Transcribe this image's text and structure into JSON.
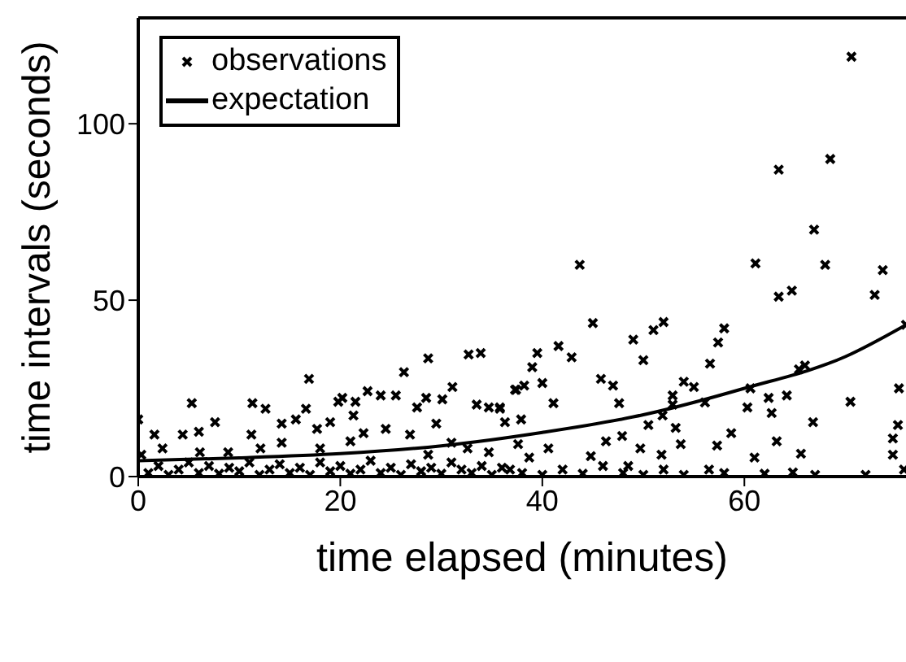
{
  "chart_data": {
    "type": "scatter",
    "xlabel": "time elapsed (minutes)",
    "ylabel": "time intervals (seconds)",
    "xlim": [
      0,
      76
    ],
    "ylim": [
      0,
      130
    ],
    "xticks": [
      0,
      20,
      40,
      60
    ],
    "yticks": [
      0,
      50,
      100
    ],
    "legend": "top left",
    "series": [
      {
        "name": "observations",
        "marker": "cross",
        "color": "#000000",
        "x": [
          70.6,
          68.5,
          63.4,
          43.7,
          61.1,
          68,
          73.7,
          63.4,
          64.7,
          72.9,
          66.9,
          45,
          49,
          51,
          52,
          57.4,
          58,
          76,
          39.5,
          41.6,
          42.9,
          39,
          50,
          56.6,
          66,
          65.4,
          37.3,
          38.2,
          40,
          41.1,
          45.8,
          47,
          54,
          55,
          52.9,
          56.1,
          60.6,
          60.3,
          62.4,
          64.2,
          62.7,
          70.5,
          75.3,
          66.8,
          58.7,
          47.6,
          51.9,
          50.5,
          53.2,
          47.9,
          46.3,
          49.7,
          53.7,
          57.3,
          63.2,
          74.7,
          75.2,
          40.6,
          38.7,
          44.8,
          51.8,
          61,
          65.6,
          74.7,
          48.5,
          56.5,
          64.8,
          36.8,
          75.8,
          34.7,
          35.8,
          36.3,
          37.9,
          37.6,
          52.9,
          5.3,
          11.3,
          12.6,
          16.9,
          26.3,
          28.7,
          32.7,
          33.9,
          31.1,
          30.1,
          28.5,
          27.6,
          25.5,
          24,
          22.7,
          21.5,
          20.2,
          19.8,
          21.3,
          16.6,
          15.6,
          14.2,
          11.2,
          7.6,
          6,
          4.4,
          1.6,
          0,
          29.5,
          28.7,
          33.5,
          35.8,
          37.4,
          19,
          17.7,
          22.3,
          24.5,
          26.9,
          31,
          32.6,
          34.7,
          21,
          18,
          14.2,
          12.1,
          8.9,
          6.1,
          2.4,
          0.3,
          1,
          2,
          3,
          4,
          5,
          6,
          7,
          8,
          9,
          10,
          11,
          12,
          13,
          14,
          15,
          16,
          17,
          18,
          19,
          20,
          21,
          22,
          23,
          24,
          25,
          26,
          27,
          28,
          29,
          30,
          31,
          32,
          33,
          34,
          35,
          36,
          38,
          40,
          42,
          44,
          46,
          48,
          50,
          52,
          54,
          58,
          62,
          67,
          72
        ],
        "values": [
          119,
          90,
          87,
          60,
          60.4,
          60,
          58.5,
          51,
          52.7,
          51.5,
          70,
          43.5,
          38.8,
          41.5,
          43.8,
          38,
          42,
          43,
          35,
          37,
          33.8,
          31,
          33,
          32,
          31.5,
          30.4,
          24.6,
          25.8,
          26.5,
          20.8,
          27.7,
          25.8,
          26.9,
          25.4,
          23,
          21,
          25,
          19.6,
          22.3,
          23,
          18,
          21.2,
          25,
          15.4,
          12.3,
          20.8,
          17.3,
          14.6,
          13.8,
          11.5,
          10,
          8,
          9.2,
          8.8,
          10,
          10.8,
          14.6,
          8,
          5.4,
          5.8,
          6.2,
          5.4,
          6.5,
          6.2,
          3,
          2,
          1.2,
          2,
          2,
          19.6,
          19.2,
          15.4,
          16.2,
          9.2,
          20.4,
          20.8,
          20.8,
          19.2,
          27.7,
          29.6,
          33.5,
          34.6,
          35,
          25.4,
          21.9,
          22.3,
          19.6,
          23,
          23,
          24.2,
          21.2,
          22.3,
          21.2,
          17.3,
          19.2,
          16.2,
          15,
          11.9,
          15.4,
          12.7,
          11.9,
          11.9,
          16.2,
          15,
          6.2,
          20.4,
          19.6,
          24.6,
          15.4,
          13.5,
          12.3,
          13.5,
          11.9,
          9.6,
          8,
          6.9,
          10,
          8,
          9.6,
          8,
          6.9,
          6.9,
          8,
          6.2,
          1,
          3,
          0.5,
          2,
          4,
          1,
          3,
          0.8,
          2.5,
          1.5,
          4,
          0.5,
          2,
          3.5,
          1,
          2.5,
          0.5,
          4,
          1.5,
          3,
          0.8,
          2,
          4.5,
          1,
          2.5,
          0.5,
          3.5,
          1.5,
          2.5,
          0.8,
          4,
          2,
          1,
          3,
          0.5,
          2.5,
          1,
          0.5,
          2,
          0.8,
          3,
          1,
          0.5,
          2,
          0.5,
          1,
          0.8,
          0.5,
          0.5
        ]
      },
      {
        "name": "expectation",
        "type": "line",
        "color": "#000000",
        "x": [
          0,
          10,
          20,
          30,
          40,
          50,
          60,
          70,
          76
        ],
        "values": [
          4.5,
          5.3,
          6.5,
          8.7,
          12.5,
          17.5,
          25,
          34,
          43
        ]
      }
    ]
  }
}
